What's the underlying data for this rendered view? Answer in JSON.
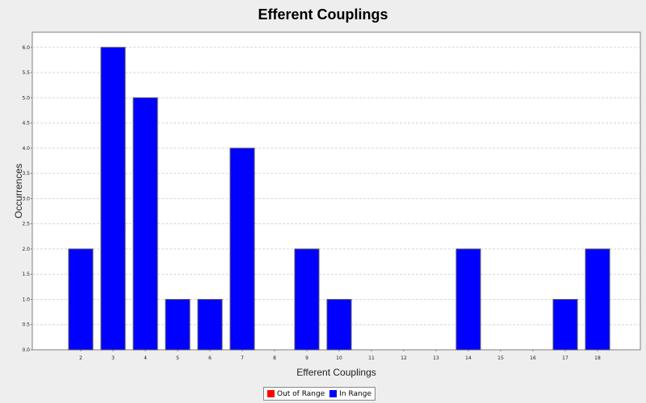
{
  "chart_data": {
    "type": "bar",
    "title": "Efferent Couplings",
    "xlabel": "Efferent Couplings",
    "ylabel": "Occurrences",
    "categories": [
      "2",
      "3",
      "4",
      "5",
      "6",
      "7",
      "8",
      "9",
      "10",
      "11",
      "12",
      "13",
      "14",
      "15",
      "16",
      "17",
      "18"
    ],
    "series": [
      {
        "name": "Out of Range",
        "color": "#ff0000",
        "values": [
          0,
          0,
          0,
          0,
          0,
          0,
          0,
          0,
          0,
          0,
          0,
          0,
          0,
          0,
          0,
          0,
          0
        ]
      },
      {
        "name": "In Range",
        "color": "#0000ff",
        "values": [
          2,
          6,
          5,
          1,
          1,
          4,
          0,
          2,
          1,
          0,
          0,
          0,
          2,
          0,
          0,
          1,
          2
        ]
      }
    ],
    "ylim": [
      0,
      6.3
    ],
    "yticks": [
      "0.0",
      "0.5",
      "1.0",
      "1.5",
      "2.0",
      "2.5",
      "3.0",
      "3.5",
      "4.0",
      "4.5",
      "5.0",
      "5.5",
      "6.0"
    ],
    "grid": true,
    "legend_position": "bottom"
  }
}
